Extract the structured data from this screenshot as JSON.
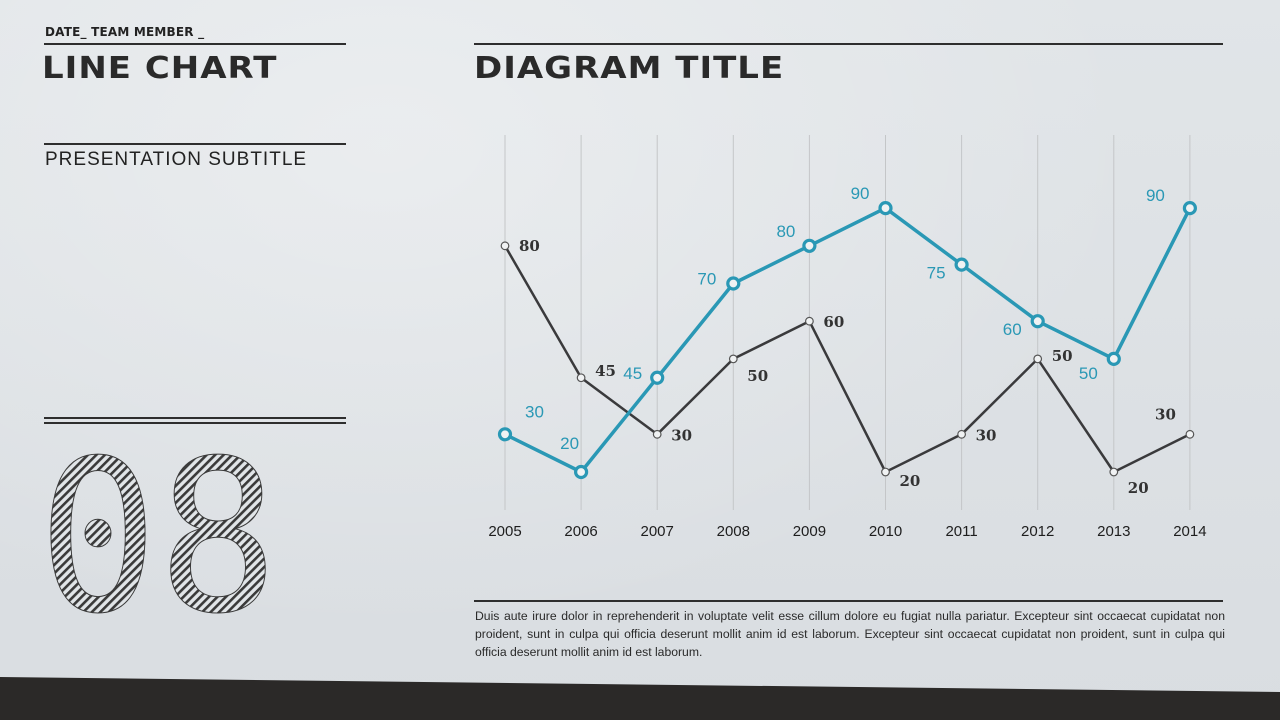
{
  "side_panel": {
    "date_line": "DATE_ TEAM MEMBER _",
    "title": "LINE CHART",
    "subtitle": "PRESENTATION  SUBTITLE",
    "number": "08"
  },
  "chart_heading": "DIAGRAM TITLE",
  "body_text": "Duis aute irure dolor in reprehenderit in voluptate velit esse cillum dolore eu fugiat nulla pariatur. Excepteur sint occaecat cupidatat non proident, sunt in culpa qui officia deserunt mollit anim id est laborum. Excepteur sint occaecat cupidatat non proident, sunt in culpa qui officia deserunt mollit anim id est laborum.",
  "colors": {
    "dark_series": "#3a3a3c",
    "blue_series": "#2a98b5",
    "grid": "#c4c6c8"
  },
  "chart_data": {
    "type": "line",
    "title": "DIAGRAM TITLE",
    "categories": [
      "2005",
      "2006",
      "2007",
      "2008",
      "2009",
      "2010",
      "2011",
      "2012",
      "2013",
      "2014"
    ],
    "series": [
      {
        "values": [
          80,
          45,
          30,
          50,
          60,
          20,
          30,
          50,
          20,
          30
        ],
        "color": "#3a3a3c"
      },
      {
        "values": [
          30,
          20,
          45,
          70,
          80,
          90,
          75,
          60,
          50,
          90
        ],
        "color": "#2a98b5"
      }
    ],
    "ylim": [
      0,
      100
    ],
    "grid": "vertical",
    "legend": "none"
  }
}
